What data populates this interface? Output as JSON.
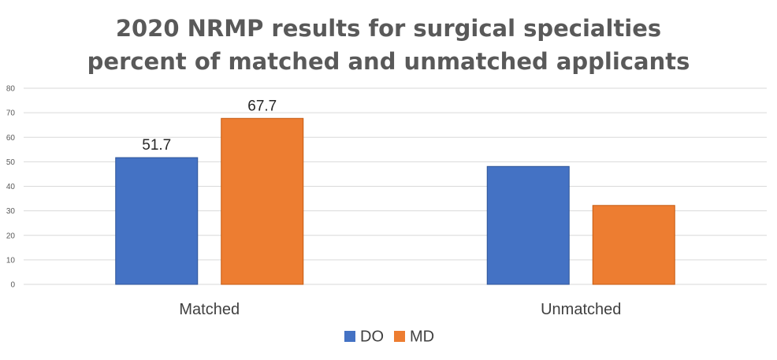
{
  "chart_data": {
    "type": "bar",
    "title_lines": [
      "2020 NRMP results for surgical specialties",
      "percent of matched and unmatched applicants"
    ],
    "categories": [
      "Matched",
      "Unmatched"
    ],
    "series": [
      {
        "name": "DO",
        "values": [
          51.7,
          48.1
        ],
        "color": "#4472C4"
      },
      {
        "name": "MD",
        "values": [
          67.7,
          32.2
        ],
        "color": "#ED7D31"
      }
    ],
    "data_labels": [
      {
        "series": 0,
        "category": 0,
        "text": "51.7"
      },
      {
        "series": 1,
        "category": 0,
        "text": "67.7"
      }
    ],
    "y_ticks": [
      "0",
      "10",
      "20",
      "30",
      "40",
      "50",
      "60",
      "70",
      "80"
    ],
    "ylim": [
      0,
      80
    ],
    "grid": true,
    "legend_position": "bottom"
  }
}
